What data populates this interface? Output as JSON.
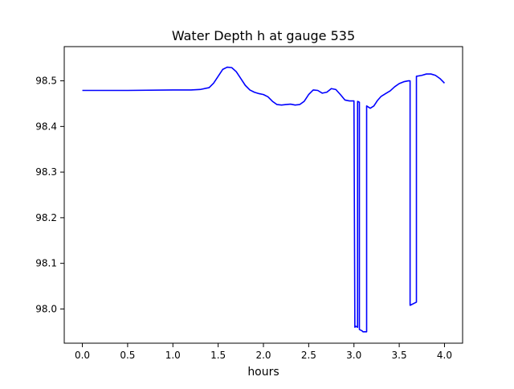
{
  "chart_data": {
    "type": "line",
    "title": "Water Depth h at gauge 535",
    "xlabel": "hours",
    "ylabel": "",
    "xlim": [
      -0.2,
      4.2
    ],
    "ylim": [
      97.925,
      98.575
    ],
    "xticks": [
      0.0,
      0.5,
      1.0,
      1.5,
      2.0,
      2.5,
      3.0,
      3.5,
      4.0
    ],
    "xtick_labels": [
      "0.0",
      "0.5",
      "1.0",
      "1.5",
      "2.0",
      "2.5",
      "3.0",
      "3.5",
      "4.0"
    ],
    "yticks": [
      98.0,
      98.1,
      98.2,
      98.3,
      98.4,
      98.5
    ],
    "ytick_labels": [
      "98.0",
      "98.1",
      "98.2",
      "98.3",
      "98.4",
      "98.5"
    ],
    "grid": false,
    "series": [
      {
        "color": "#0000ff",
        "x": [
          0.0,
          0.5,
          1.0,
          1.2,
          1.3,
          1.4,
          1.45,
          1.5,
          1.55,
          1.6,
          1.65,
          1.7,
          1.75,
          1.8,
          1.85,
          1.9,
          1.95,
          2.0,
          2.05,
          2.1,
          2.15,
          2.2,
          2.25,
          2.3,
          2.35,
          2.4,
          2.45,
          2.5,
          2.55,
          2.6,
          2.65,
          2.7,
          2.75,
          2.8,
          2.85,
          2.9,
          2.95,
          3.0,
          3.01,
          3.02,
          3.04,
          3.04,
          3.06,
          3.06,
          3.09,
          3.1,
          3.14,
          3.14,
          3.18,
          3.22,
          3.26,
          3.3,
          3.35,
          3.4,
          3.45,
          3.5,
          3.55,
          3.6,
          3.62,
          3.62,
          3.69,
          3.69,
          3.75,
          3.8,
          3.85,
          3.9,
          3.95,
          4.0
        ],
        "y": [
          98.479,
          98.479,
          98.48,
          98.48,
          98.481,
          98.485,
          98.495,
          98.51,
          98.525,
          98.53,
          98.529,
          98.52,
          98.505,
          98.49,
          98.48,
          98.475,
          98.472,
          98.47,
          98.465,
          98.455,
          98.448,
          98.447,
          98.448,
          98.449,
          98.447,
          98.448,
          98.455,
          98.47,
          98.48,
          98.479,
          98.473,
          98.475,
          98.483,
          98.481,
          98.47,
          98.458,
          98.456,
          98.456,
          97.96,
          97.962,
          97.96,
          98.455,
          98.453,
          97.955,
          97.952,
          97.95,
          97.95,
          98.445,
          98.44,
          98.445,
          98.457,
          98.466,
          98.472,
          98.478,
          98.487,
          98.494,
          98.498,
          98.5,
          98.5,
          98.008,
          98.015,
          98.51,
          98.512,
          98.515,
          98.515,
          98.512,
          98.505,
          98.495
        ]
      }
    ]
  }
}
